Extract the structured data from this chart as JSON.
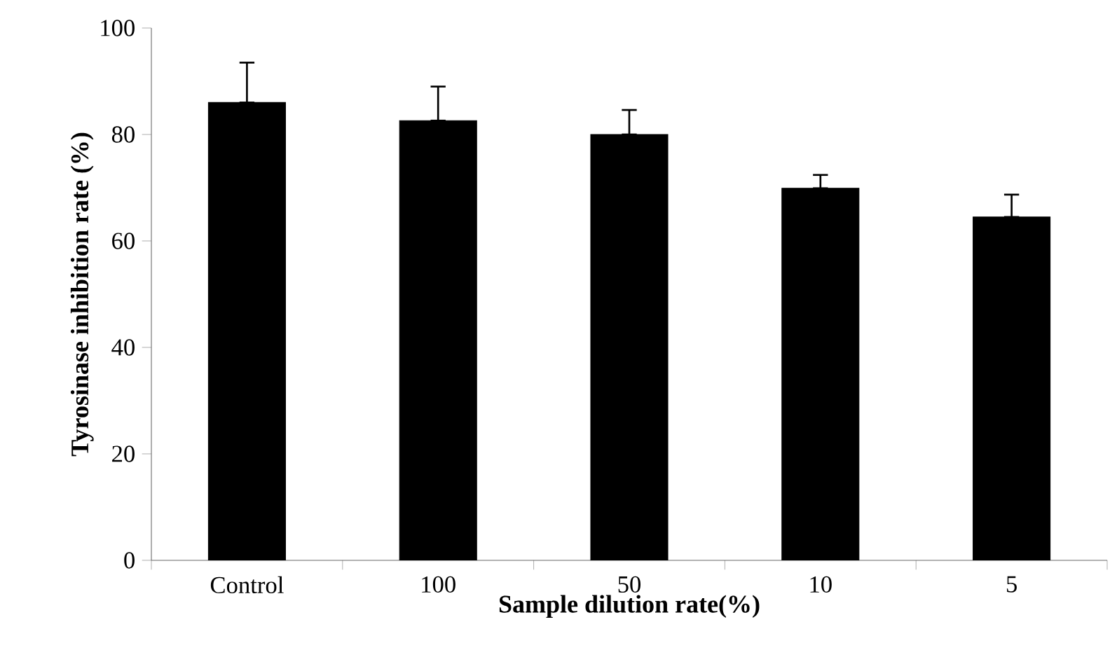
{
  "chart_data": {
    "type": "bar",
    "xlabel": "Sample dilution  rate(%)",
    "ylabel": "Tyrosinase inhibition  rate (%)",
    "categories": [
      "Control",
      "100",
      "50",
      "10",
      "5"
    ],
    "values": [
      86.0,
      82.6,
      80.0,
      69.9,
      64.5
    ],
    "errors": [
      [
        86.0,
        93.5
      ],
      [
        82.6,
        89.0
      ],
      [
        80.0,
        84.6
      ],
      [
        69.9,
        72.4
      ],
      [
        64.5,
        68.7
      ]
    ],
    "color": "#000000",
    "ylim": [
      0,
      100
    ],
    "yticks": [
      0,
      20,
      40,
      60,
      80,
      100
    ],
    "grid": false
  }
}
